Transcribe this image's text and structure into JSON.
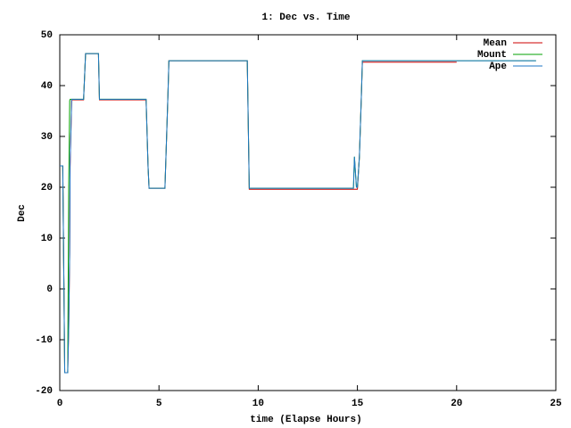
{
  "chart_data": {
    "type": "line",
    "title": "1: Dec vs. Time",
    "x_label": "time (Elapse Hours)",
    "y_label": "Dec",
    "x": [
      0,
      0.15,
      0.2,
      0.25,
      0.4,
      0.45,
      0.5,
      0.52,
      0.6,
      1.2,
      1.3,
      1.95,
      2.0,
      4.35,
      4.45,
      4.5,
      5.3,
      5.45,
      5.5,
      9.45,
      9.55,
      14.8,
      14.85,
      14.95,
      15.0,
      15.1,
      15.2,
      15.25,
      20.0,
      24.0
    ],
    "series": [
      {
        "name": "Mean",
        "color": "#cc0000",
        "values": [
          24.2,
          24.2,
          4,
          -16.5,
          -16.5,
          -8,
          7,
          24,
          37.2,
          37.2,
          46.3,
          46.3,
          37.2,
          37.2,
          24,
          19.8,
          19.8,
          38,
          44.9,
          44.9,
          19.6,
          19.6,
          19.6,
          19.6,
          19.6,
          26,
          38,
          44.6,
          44.6,
          null
        ]
      },
      {
        "name": "Mount",
        "color": "#00a000",
        "values": [
          24.2,
          24.2,
          4,
          -16.5,
          -16.5,
          20,
          37,
          37.3,
          37.3,
          37.3,
          46.3,
          46.3,
          37.3,
          37.3,
          24,
          19.8,
          19.8,
          38,
          44.9,
          44.9,
          19.8,
          19.8,
          26,
          20,
          20,
          26,
          38,
          44.9,
          44.9,
          44.9
        ]
      },
      {
        "name": "Ape",
        "color": "#1f77c4",
        "values": [
          24.2,
          24.2,
          4,
          -16.5,
          -16.5,
          -8,
          7,
          24,
          37.3,
          37.3,
          46.3,
          46.3,
          37.3,
          37.3,
          24,
          19.8,
          19.8,
          38,
          44.9,
          44.9,
          19.8,
          19.8,
          26,
          20,
          20,
          26,
          38,
          44.9,
          44.9,
          44.9
        ]
      }
    ],
    "xlim": [
      0,
      25
    ],
    "xticks": [
      0,
      5,
      10,
      15,
      20,
      25
    ],
    "ylim": [
      -20,
      50
    ],
    "yticks": [
      -20,
      -10,
      0,
      10,
      20,
      30,
      40,
      50
    ],
    "grid": false,
    "legend": "top-right"
  }
}
